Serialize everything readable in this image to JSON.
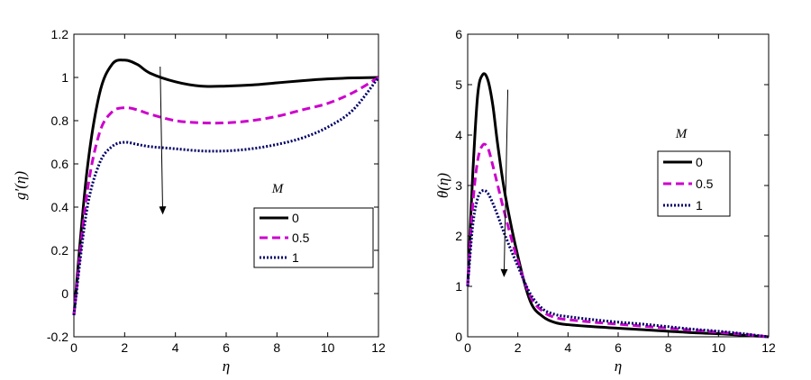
{
  "chart_data": [
    {
      "type": "line",
      "xlabel": "η",
      "ylabel": "g′(η)",
      "xlim": [
        0,
        12
      ],
      "ylim": [
        -0.2,
        1.2
      ],
      "x_ticks": [
        "0",
        "2",
        "4",
        "6",
        "8",
        "10",
        "12"
      ],
      "y_ticks": [
        "-0.2",
        "0",
        "0.2",
        "0.4",
        "0.6",
        "0.8",
        "1",
        "1.2"
      ],
      "legend_title": "M",
      "legend_position": "center-right",
      "arrow": {
        "from": [
          3.4,
          1.05
        ],
        "to": [
          3.5,
          0.37
        ]
      },
      "series": [
        {
          "name": "0",
          "color": "#000000",
          "style": "solid",
          "x": [
            0,
            0.5,
            1,
            1.5,
            2,
            2.5,
            3,
            4,
            5,
            6,
            7,
            8,
            9,
            10,
            11,
            12
          ],
          "y": [
            -0.1,
            0.55,
            0.92,
            1.06,
            1.08,
            1.06,
            1.02,
            0.98,
            0.96,
            0.96,
            0.965,
            0.975,
            0.985,
            0.993,
            0.998,
            1.0
          ]
        },
        {
          "name": "0.5",
          "color": "#cc00cc",
          "style": "dashed",
          "x": [
            0,
            0.5,
            1,
            1.5,
            2,
            2.5,
            3,
            4,
            5,
            6,
            7,
            8,
            9,
            10,
            11,
            12
          ],
          "y": [
            -0.1,
            0.45,
            0.74,
            0.84,
            0.86,
            0.85,
            0.83,
            0.8,
            0.79,
            0.79,
            0.8,
            0.82,
            0.85,
            0.88,
            0.93,
            1.0
          ]
        },
        {
          "name": "1",
          "color": "#000066",
          "style": "dotted",
          "x": [
            0,
            0.5,
            1,
            1.5,
            2,
            2.5,
            3,
            4,
            5,
            6,
            7,
            8,
            9,
            10,
            11,
            12
          ],
          "y": [
            -0.1,
            0.38,
            0.6,
            0.68,
            0.7,
            0.69,
            0.68,
            0.67,
            0.66,
            0.66,
            0.67,
            0.69,
            0.72,
            0.77,
            0.85,
            1.0
          ]
        }
      ]
    },
    {
      "type": "line",
      "xlabel": "η",
      "ylabel": "θ(η)",
      "xlim": [
        0,
        12
      ],
      "ylim": [
        0,
        6
      ],
      "x_ticks": [
        "0",
        "2",
        "4",
        "6",
        "8",
        "10",
        "12"
      ],
      "y_ticks": [
        "0",
        "1",
        "2",
        "3",
        "4",
        "5",
        "6"
      ],
      "legend_title": "M",
      "legend_position": "center-right",
      "arrow": {
        "from": [
          1.6,
          4.9
        ],
        "to": [
          1.45,
          1.2
        ]
      },
      "series": [
        {
          "name": "0",
          "color": "#000000",
          "style": "solid",
          "x": [
            0,
            0.2,
            0.4,
            0.6,
            0.8,
            1,
            1.2,
            1.5,
            2,
            2.5,
            3,
            3.5,
            4,
            5,
            6,
            7,
            8,
            9,
            10,
            11,
            12
          ],
          "y": [
            1.0,
            3.2,
            4.8,
            5.2,
            5.1,
            4.6,
            3.8,
            2.8,
            1.6,
            0.7,
            0.4,
            0.28,
            0.24,
            0.2,
            0.17,
            0.14,
            0.11,
            0.08,
            0.06,
            0.03,
            0.0
          ]
        },
        {
          "name": "0.5",
          "color": "#cc00cc",
          "style": "dashed",
          "x": [
            0,
            0.2,
            0.4,
            0.6,
            0.8,
            1,
            1.2,
            1.5,
            2,
            2.5,
            3,
            3.5,
            4,
            5,
            6,
            7,
            8,
            9,
            10,
            11,
            12
          ],
          "y": [
            1.0,
            2.6,
            3.5,
            3.8,
            3.75,
            3.4,
            3.0,
            2.4,
            1.5,
            0.8,
            0.5,
            0.38,
            0.34,
            0.29,
            0.25,
            0.21,
            0.17,
            0.13,
            0.09,
            0.05,
            0.0
          ]
        },
        {
          "name": "1",
          "color": "#000066",
          "style": "dotted",
          "x": [
            0,
            0.2,
            0.4,
            0.6,
            0.8,
            1,
            1.2,
            1.5,
            2,
            2.5,
            3,
            3.5,
            4,
            5,
            6,
            7,
            8,
            9,
            10,
            11,
            12
          ],
          "y": [
            1.0,
            2.2,
            2.75,
            2.9,
            2.85,
            2.65,
            2.4,
            2.0,
            1.4,
            0.85,
            0.55,
            0.44,
            0.4,
            0.34,
            0.29,
            0.25,
            0.2,
            0.15,
            0.11,
            0.06,
            0.0
          ]
        }
      ]
    }
  ]
}
